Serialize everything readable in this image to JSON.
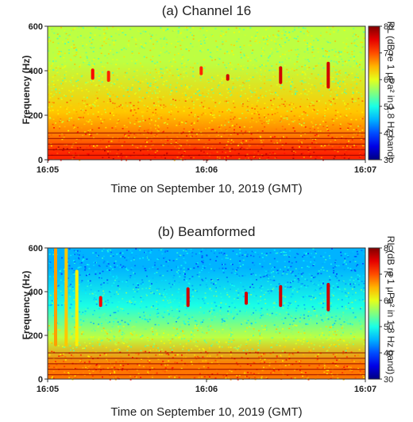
{
  "chart_data": [
    {
      "type": "heatmap",
      "title": "(a) Channel 16",
      "xlabel": "Time on September 10, 2019 (GMT)",
      "ylabel": "Frequency (Hz)",
      "x_ticks": [
        "16:05",
        "16:06",
        "16:07"
      ],
      "y_ticks": [
        0,
        200,
        400,
        600
      ],
      "ylim": [
        0,
        600
      ],
      "colorbar": {
        "label": "RL (dB re 1 μPa² in 1.8 Hz band)",
        "ticks": [
          30,
          40,
          50,
          60,
          70,
          80
        ],
        "range": [
          30,
          80
        ],
        "colormap": "jet"
      },
      "bands": [
        {
          "f_from": 0,
          "f_to": 60,
          "level_db": 72
        },
        {
          "f_from": 60,
          "f_to": 150,
          "level_db": 68
        },
        {
          "f_from": 150,
          "f_to": 280,
          "level_db": 64
        },
        {
          "f_from": 280,
          "f_to": 600,
          "level_db": 58
        }
      ],
      "events": [
        {
          "time": "16:05:17",
          "f_low": 360,
          "f_high": 410,
          "level_db": 74
        },
        {
          "time": "16:05:23",
          "f_low": 350,
          "f_high": 400,
          "level_db": 72
        },
        {
          "time": "16:05:58",
          "f_low": 380,
          "f_high": 420,
          "level_db": 72
        },
        {
          "time": "16:06:08",
          "f_low": 355,
          "f_high": 385,
          "level_db": 76
        },
        {
          "time": "16:06:28",
          "f_low": 340,
          "f_high": 420,
          "level_db": 76
        },
        {
          "time": "16:06:46",
          "f_low": 320,
          "f_high": 440,
          "level_db": 76
        }
      ]
    },
    {
      "type": "heatmap",
      "title": "(b) Beamformed",
      "xlabel": "Time on September 10, 2019 (GMT)",
      "ylabel": "Frequency (Hz)",
      "x_ticks": [
        "16:05",
        "16:06",
        "16:07"
      ],
      "y_ticks": [
        0,
        200,
        400,
        600
      ],
      "ylim": [
        0,
        600
      ],
      "colorbar": {
        "label": "RL (dB re 1 μPa² in 1.8 Hz band)",
        "ticks": [
          30,
          40,
          50,
          60,
          70,
          80
        ],
        "range": [
          30,
          80
        ],
        "colormap": "jet"
      },
      "bands": [
        {
          "f_from": 0,
          "f_to": 130,
          "level_db": 68
        },
        {
          "f_from": 130,
          "f_to": 250,
          "level_db": 58
        },
        {
          "f_from": 250,
          "f_to": 420,
          "level_db": 50
        },
        {
          "f_from": 420,
          "f_to": 600,
          "level_db": 45
        }
      ],
      "events": [
        {
          "time": "16:05:03",
          "f_low": 150,
          "f_high": 600,
          "level_db": 66
        },
        {
          "time": "16:05:07",
          "f_low": 150,
          "f_high": 600,
          "level_db": 64
        },
        {
          "time": "16:05:11",
          "f_low": 150,
          "f_high": 500,
          "level_db": 62
        },
        {
          "time": "16:05:20",
          "f_low": 330,
          "f_high": 380,
          "level_db": 74
        },
        {
          "time": "16:06:15",
          "f_low": 340,
          "f_high": 400,
          "level_db": 76
        },
        {
          "time": "16:06:28",
          "f_low": 330,
          "f_high": 430,
          "level_db": 76
        },
        {
          "time": "16:06:46",
          "f_low": 310,
          "f_high": 440,
          "level_db": 76
        },
        {
          "time": "16:05:53",
          "f_low": 330,
          "f_high": 420,
          "level_db": 76
        }
      ]
    }
  ]
}
